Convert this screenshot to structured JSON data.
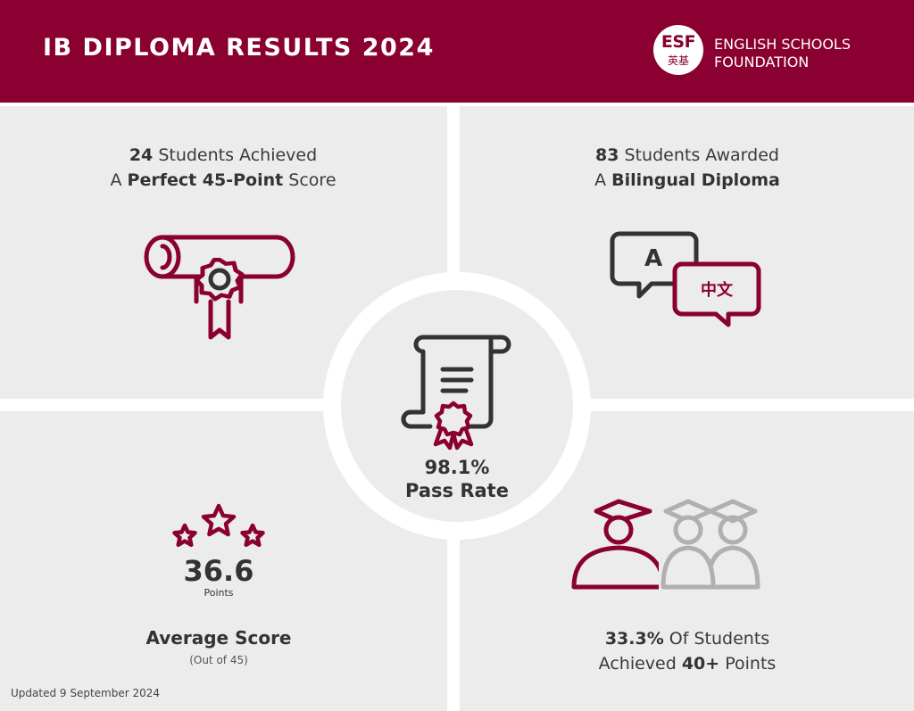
{
  "header": {
    "title": "IB DIPLOMA RESULTS 2024",
    "logo": {
      "mark": "ESF",
      "mark_chinese": "英基",
      "name_line1": "ENGLISH SCHOOLS",
      "name_line2": "FOUNDATION"
    }
  },
  "colors": {
    "brand": "#8a0031",
    "panel": "#ececec",
    "text": "#333333",
    "muted_icon": "#b0b0b0"
  },
  "perfect_score": {
    "count": "24",
    "line1_rest": " Students Achieved",
    "line2_prefix": "A ",
    "line2_bold": "Perfect 45-Point",
    "line2_rest": " Score",
    "icon": "diploma-scroll-rosette-icon"
  },
  "bilingual": {
    "count": "83",
    "line1_rest": " Students Awarded",
    "line2_prefix": "A ",
    "line2_bold": "Bilingual Diploma",
    "icon": "speech-bubbles-translation-icon",
    "bubble_latin": "A",
    "bubble_chinese": "中文"
  },
  "pass_rate": {
    "value": "98.1%",
    "label": "Pass Rate",
    "icon": "certificate-scroll-icon"
  },
  "average": {
    "value": "36.6",
    "unit": "Points",
    "label": "Average Score",
    "sub": "(Out of 45)",
    "icon": "three-stars-icon"
  },
  "forty_plus": {
    "percent": "33.3%",
    "line1_rest": " Of Students",
    "line2_prefix": "Achieved ",
    "line2_bold": "40+",
    "line2_rest": " Points",
    "icon": "graduates-group-icon",
    "highlighted_fraction": 0.333
  },
  "footer": {
    "updated": "Updated 9 September 2024"
  }
}
